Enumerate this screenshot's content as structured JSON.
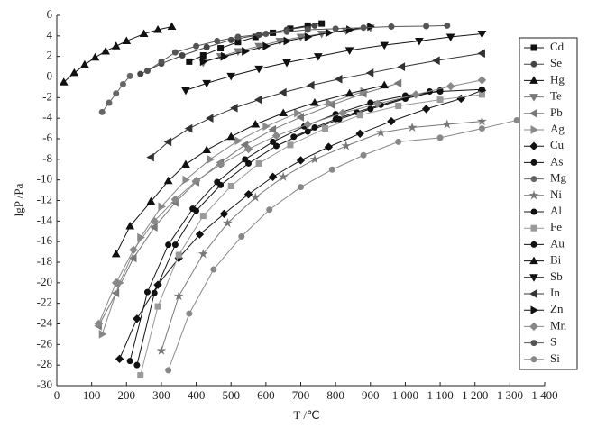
{
  "chart_data": {
    "type": "line",
    "x_label": "T /℃",
    "y_label": "lgP /Pa",
    "xlim": [
      0,
      1400
    ],
    "ylim": [
      -30,
      6
    ],
    "xticks": [
      0,
      100,
      200,
      300,
      400,
      500,
      600,
      700,
      800,
      900,
      {
        "value": 1000,
        "label": "1 000"
      },
      {
        "value": 1100,
        "label": "1 100"
      },
      {
        "value": 1200,
        "label": "1 200"
      },
      {
        "value": 1300,
        "label": "1 300"
      },
      {
        "value": 1400,
        "label": "1 400"
      }
    ],
    "yticks": [
      -30,
      -28,
      -26,
      -24,
      -22,
      -20,
      -18,
      -16,
      -14,
      -12,
      -10,
      -8,
      -6,
      -4,
      -2,
      0,
      2,
      4,
      6
    ],
    "grid": false,
    "legend": "right",
    "series": [
      {
        "name": "Cd",
        "color": "#111",
        "marker": "square",
        "x": [
          380,
          420,
          470,
          520,
          570,
          620,
          670,
          720,
          760
        ],
        "values": [
          1.5,
          2.1,
          2.8,
          3.4,
          3.9,
          4.3,
          4.7,
          5.0,
          5.2
        ]
      },
      {
        "name": "Se",
        "color": "#444",
        "marker": "circle",
        "x": [
          240,
          300,
          360,
          430,
          500,
          580,
          660,
          740
        ],
        "values": [
          0.3,
          1.3,
          2.1,
          2.9,
          3.6,
          4.1,
          4.6,
          5.0
        ]
      },
      {
        "name": "Hg",
        "color": "#111",
        "marker": "triangle",
        "x": [
          20,
          50,
          80,
          110,
          140,
          170,
          200,
          250,
          290,
          330
        ],
        "values": [
          -0.5,
          0.4,
          1.2,
          1.9,
          2.5,
          3.0,
          3.5,
          4.2,
          4.6,
          4.9
        ]
      },
      {
        "name": "Te",
        "color": "#777",
        "marker": "down",
        "x": [
          420,
          470,
          520,
          580,
          640,
          700,
          760,
          830,
          900
        ],
        "values": [
          1.4,
          2.0,
          2.5,
          3.0,
          3.5,
          3.9,
          4.2,
          4.5,
          4.8
        ]
      },
      {
        "name": "Pb",
        "color": "#777",
        "marker": "left",
        "x": [
          120,
          170,
          220,
          280,
          340,
          400,
          470,
          540,
          620,
          700,
          790,
          880,
          980
        ],
        "values": [
          -24.2,
          -21,
          -17.6,
          -14.6,
          -12.2,
          -10.2,
          -8.3,
          -6.6,
          -5.1,
          -3.9,
          -2.7,
          -1.6,
          -0.6
        ]
      },
      {
        "name": "Ag",
        "color": "#888",
        "marker": "right",
        "x": [
          130,
          180,
          240,
          300,
          370,
          440,
          520,
          600,
          690,
          780,
          880
        ],
        "values": [
          -25,
          -20,
          -15.6,
          -12.6,
          -10,
          -8,
          -6.2,
          -4.8,
          -3.5,
          -2.5,
          -1.4
        ]
      },
      {
        "name": "Cu",
        "color": "#111",
        "marker": "diamond",
        "x": [
          180,
          230,
          290,
          350,
          410,
          480,
          550,
          620,
          700,
          780,
          870,
          960,
          1060,
          1160,
          1220
        ],
        "values": [
          -27.4,
          -23.5,
          -20.2,
          -17.6,
          -15.3,
          -13.3,
          -11.4,
          -9.7,
          -8.1,
          -6.8,
          -5.5,
          -4.3,
          -3.1,
          -2.1,
          -1.3
        ]
      },
      {
        "name": "As",
        "color": "#111",
        "marker": "circle",
        "x": [
          680,
          740,
          800,
          860,
          930,
          1000,
          1070
        ],
        "values": [
          -5.8,
          -4.9,
          -4.1,
          -3.4,
          -2.7,
          -2.0,
          -1.4
        ]
      },
      {
        "name": "Mg",
        "color": "#666",
        "marker": "circle",
        "x": [
          130,
          150,
          170,
          190,
          210
        ],
        "values": [
          -3.4,
          -2.5,
          -1.6,
          -0.7,
          0.1
        ]
      },
      {
        "name": "Ni",
        "color": "#777",
        "marker": "star",
        "x": [
          300,
          350,
          420,
          490,
          570,
          650,
          740,
          830,
          930,
          1020,
          1120,
          1220
        ],
        "values": [
          -26.6,
          -21.3,
          -17.2,
          -14.2,
          -11.7,
          -9.7,
          -8.0,
          -6.7,
          -5.4,
          -4.9,
          -4.6,
          -4.3
        ]
      },
      {
        "name": "Al",
        "color": "#111",
        "marker": "circle",
        "x": [
          230,
          280,
          340,
          400,
          470,
          550,
          630,
          720,
          810,
          900,
          1000,
          1100
        ],
        "values": [
          -28,
          -21,
          -16.3,
          -13,
          -10.5,
          -8.4,
          -6.7,
          -5.3,
          -4.1,
          -3.1,
          -2.1,
          -1.3
        ]
      },
      {
        "name": "Fe",
        "color": "#999",
        "marker": "square",
        "x": [
          240,
          290,
          350,
          420,
          500,
          580,
          670,
          770,
          870,
          980,
          1100,
          1220
        ],
        "values": [
          -29,
          -22.3,
          -17.3,
          -13.5,
          -10.6,
          -8.4,
          -6.6,
          -5,
          -3.7,
          -2.8,
          -2.2,
          -1.7
        ]
      },
      {
        "name": "Au",
        "color": "#111",
        "marker": "circle",
        "x": [
          210,
          260,
          320,
          390,
          460,
          540,
          620,
          710,
          800,
          900,
          1000,
          1100,
          1220
        ],
        "values": [
          -27.6,
          -20.9,
          -16.3,
          -12.8,
          -10.2,
          -8.0,
          -6.3,
          -4.8,
          -3.6,
          -2.5,
          -1.8,
          -1.4,
          -1.2
        ]
      },
      {
        "name": "Bi",
        "color": "#111",
        "marker": "triangle",
        "x": [
          170,
          210,
          270,
          320,
          370,
          430,
          500,
          570,
          650,
          740,
          840,
          940
        ],
        "values": [
          -17.2,
          -14.5,
          -12.1,
          -10.1,
          -8.5,
          -7.1,
          -5.8,
          -4.6,
          -3.5,
          -2.5,
          -1.6,
          -0.8
        ]
      },
      {
        "name": "Sb",
        "color": "#111",
        "marker": "down",
        "x": [
          370,
          430,
          500,
          580,
          660,
          750,
          840,
          940,
          1040,
          1130,
          1220
        ],
        "values": [
          -1.3,
          -0.6,
          0.1,
          0.8,
          1.4,
          2.0,
          2.6,
          3.1,
          3.5,
          3.9,
          4.2
        ]
      },
      {
        "name": "In",
        "color": "#333",
        "marker": "left",
        "x": [
          270,
          320,
          380,
          440,
          510,
          580,
          650,
          730,
          810,
          900,
          990,
          1090,
          1220
        ],
        "values": [
          -7.8,
          -6.3,
          -5.0,
          -4.0,
          -3.0,
          -2.2,
          -1.5,
          -0.8,
          -0.2,
          0.4,
          1.0,
          1.6,
          2.3
        ]
      },
      {
        "name": "Zn",
        "color": "#111",
        "marker": "right",
        "x": [
          420,
          480,
          540,
          600,
          660,
          720,
          780,
          840,
          900
        ],
        "values": [
          1.5,
          2.0,
          2.5,
          3.0,
          3.5,
          3.9,
          4.3,
          4.6,
          4.9
        ]
      },
      {
        "name": "Mn",
        "color": "#888",
        "marker": "diamond",
        "x": [
          120,
          170,
          220,
          280,
          340,
          400,
          470,
          550,
          630,
          720,
          820,
          920,
          1030,
          1130,
          1220
        ],
        "values": [
          -24,
          -20,
          -16.8,
          -14,
          -11.9,
          -10.1,
          -8.5,
          -7.0,
          -5.7,
          -4.6,
          -3.5,
          -2.6,
          -1.7,
          -0.9,
          -0.3
        ]
      },
      {
        "name": "S",
        "color": "#555",
        "marker": "circle",
        "x": [
          260,
          300,
          340,
          400,
          460,
          520,
          600,
          660,
          720,
          800,
          880,
          960,
          1060,
          1120
        ],
        "values": [
          0.6,
          1.5,
          2.4,
          3.0,
          3.5,
          3.9,
          4.2,
          4.4,
          4.6,
          4.7,
          4.8,
          4.9,
          4.95,
          5.0
        ]
      },
      {
        "name": "Si",
        "color": "#888",
        "marker": "circle",
        "x": [
          320,
          380,
          450,
          530,
          610,
          700,
          790,
          880,
          980,
          1100,
          1220,
          1320
        ],
        "values": [
          -28.5,
          -23,
          -18.7,
          -15.5,
          -12.9,
          -10.7,
          -9.0,
          -7.6,
          -6.3,
          -5.9,
          -5.0,
          -4.2
        ]
      }
    ]
  }
}
